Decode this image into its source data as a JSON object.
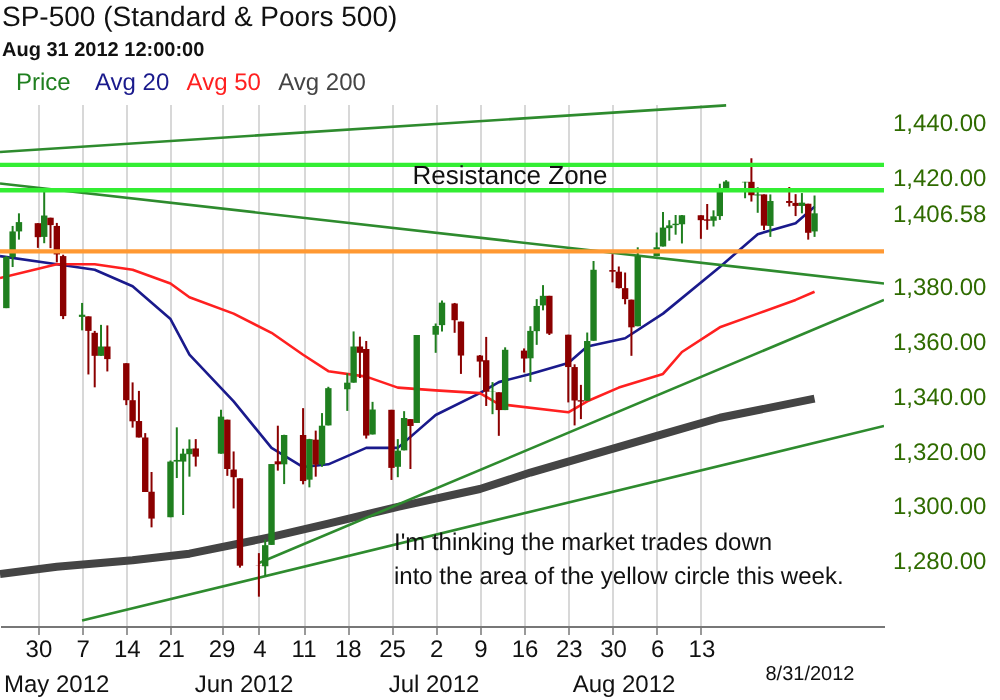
{
  "chart_data": {
    "type": "candlestick",
    "title": "SP-500 (Standard & Poors 500)",
    "subtitle": "Aug 31 2012 12:00:00",
    "xlim": [
      "2012-04-24",
      "2012-09-11"
    ],
    "xticks": [
      {
        "value": "2012-04-30",
        "label": "30"
      },
      {
        "value": "2012-05-07",
        "label": "7"
      },
      {
        "value": "2012-05-14",
        "label": "14"
      },
      {
        "value": "2012-05-21",
        "label": "21"
      },
      {
        "value": "2012-05-29",
        "label": "29"
      },
      {
        "value": "2012-06-04",
        "label": "4"
      },
      {
        "value": "2012-06-11",
        "label": "11"
      },
      {
        "value": "2012-06-18",
        "label": "18"
      },
      {
        "value": "2012-06-25",
        "label": "25"
      },
      {
        "value": "2012-07-02",
        "label": "2"
      },
      {
        "value": "2012-07-09",
        "label": "9"
      },
      {
        "value": "2012-07-16",
        "label": "16"
      },
      {
        "value": "2012-07-23",
        "label": "23"
      },
      {
        "value": "2012-07-30",
        "label": "30"
      },
      {
        "value": "2012-08-06",
        "label": "6"
      },
      {
        "value": "2012-08-13",
        "label": "13"
      }
    ],
    "ylim": [
      1256,
      1446.5
    ],
    "yticks": [
      {
        "value": 1280,
        "label": "1,280.00"
      },
      {
        "value": 1300,
        "label": "1,300.00"
      },
      {
        "value": 1320,
        "label": "1,320.00"
      },
      {
        "value": 1340,
        "label": "1,340.00"
      },
      {
        "value": 1360,
        "label": "1,360.00"
      },
      {
        "value": 1380,
        "label": "1,380.00"
      },
      {
        "value": 1406.58,
        "label": "1,406.58"
      },
      {
        "value": 1420,
        "label": "1,420.00"
      },
      {
        "value": 1440,
        "label": "1,440.00"
      }
    ],
    "grid": "x",
    "legend": "top left",
    "series": [
      {
        "type": "line",
        "name": "Avg 20",
        "color": "#1a1a8c",
        "x": [
          "2012-04-24",
          "2012-05-03",
          "2012-05-09",
          "2012-05-15",
          "2012-05-21",
          "2012-05-24",
          "2012-05-31",
          "2012-06-06",
          "2012-06-11",
          "2012-06-15",
          "2012-06-21",
          "2012-06-26",
          "2012-07-02",
          "2012-07-09",
          "2012-07-12",
          "2012-07-17",
          "2012-07-23",
          "2012-07-26",
          "2012-08-01",
          "2012-08-07",
          "2012-08-16",
          "2012-08-22",
          "2012-08-28",
          "2012-08-31"
        ],
        "values": [
          1391,
          1388,
          1386,
          1380,
          1368,
          1355,
          1338,
          1321,
          1314,
          1315,
          1321,
          1321,
          1333,
          1341,
          1345,
          1348,
          1352,
          1358,
          1361,
          1370,
          1387,
          1399,
          1403,
          1409
        ]
      },
      {
        "type": "line",
        "name": "Avg 50",
        "color": "#ff2020",
        "x": [
          "2012-04-24",
          "2012-05-03",
          "2012-05-09",
          "2012-05-15",
          "2012-05-21",
          "2012-05-24",
          "2012-05-31",
          "2012-06-06",
          "2012-06-11",
          "2012-06-15",
          "2012-06-21",
          "2012-06-26",
          "2012-07-02",
          "2012-07-09",
          "2012-07-12",
          "2012-07-23",
          "2012-07-26",
          "2012-07-31",
          "2012-08-07",
          "2012-08-10",
          "2012-08-16",
          "2012-08-22",
          "2012-08-28",
          "2012-08-31"
        ],
        "values": [
          1383,
          1388,
          1388,
          1386,
          1381,
          1376,
          1370,
          1363,
          1355,
          1349,
          1347,
          1343,
          1342,
          1341,
          1337,
          1334,
          1338,
          1343,
          1348,
          1356,
          1365,
          1370,
          1375,
          1378
        ]
      },
      {
        "type": "line",
        "name": "Avg 200",
        "color": "#444444",
        "x": [
          "2012-04-24",
          "2012-05-03",
          "2012-05-15",
          "2012-05-24",
          "2012-06-06",
          "2012-06-15",
          "2012-06-26",
          "2012-07-09",
          "2012-07-17",
          "2012-07-26",
          "2012-08-07",
          "2012-08-16",
          "2012-08-31"
        ],
        "values": [
          1275,
          1277.6,
          1280,
          1282.4,
          1288.5,
          1293.4,
          1299.5,
          1306,
          1312,
          1318,
          1326,
          1332,
          1339
        ]
      },
      {
        "type": "line",
        "color": "#2e8b2e",
        "x": [
          "2012-04-24",
          "2012-08-17"
        ],
        "values": [
          1429,
          1446
        ]
      },
      {
        "type": "line",
        "color": "#2e8b2e",
        "x": [
          "2012-04-24",
          "2012-09-11"
        ],
        "values": [
          1417.5,
          1381
        ]
      },
      {
        "type": "line",
        "color": "#2e8b2e",
        "x": [
          "2012-06-04",
          "2012-09-11"
        ],
        "values": [
          1279,
          1375
        ]
      },
      {
        "type": "line",
        "color": "#2e8b2e",
        "x": [
          "2012-05-07",
          "2012-09-11"
        ],
        "values": [
          1258,
          1329
        ]
      },
      {
        "type": "candlestick",
        "name": "Price",
        "color": "#1f7f1f",
        "x": [
          "2012-04-25",
          "2012-04-26",
          "2012-04-27",
          "2012-04-30",
          "2012-05-01",
          "2012-05-02",
          "2012-05-03",
          "2012-05-04",
          "2012-05-07",
          "2012-05-08",
          "2012-05-09",
          "2012-05-10",
          "2012-05-11",
          "2012-05-14",
          "2012-05-15",
          "2012-05-16",
          "2012-05-17",
          "2012-05-18",
          "2012-05-21",
          "2012-05-22",
          "2012-05-23",
          "2012-05-24",
          "2012-05-25",
          "2012-05-29",
          "2012-05-30",
          "2012-05-31",
          "2012-06-01",
          "2012-06-04",
          "2012-06-05",
          "2012-06-06",
          "2012-06-07",
          "2012-06-08",
          "2012-06-11",
          "2012-06-12",
          "2012-06-13",
          "2012-06-14",
          "2012-06-15",
          "2012-06-18",
          "2012-06-19",
          "2012-06-20",
          "2012-06-21",
          "2012-06-22",
          "2012-06-25",
          "2012-06-26",
          "2012-06-27",
          "2012-06-28",
          "2012-06-29",
          "2012-07-02",
          "2012-07-03",
          "2012-07-05",
          "2012-07-06",
          "2012-07-09",
          "2012-07-10",
          "2012-07-11",
          "2012-07-12",
          "2012-07-13",
          "2012-07-16",
          "2012-07-17",
          "2012-07-18",
          "2012-07-19",
          "2012-07-20",
          "2012-07-23",
          "2012-07-24",
          "2012-07-25",
          "2012-07-26",
          "2012-07-27",
          "2012-07-30",
          "2012-07-31",
          "2012-08-01",
          "2012-08-02",
          "2012-08-03",
          "2012-08-06",
          "2012-08-07",
          "2012-08-08",
          "2012-08-09",
          "2012-08-10",
          "2012-08-13",
          "2012-08-14",
          "2012-08-15",
          "2012-08-16",
          "2012-08-17",
          "2012-08-20",
          "2012-08-21",
          "2012-08-22",
          "2012-08-23",
          "2012-08-24",
          "2012-08-27",
          "2012-08-28",
          "2012-08-29",
          "2012-08-30",
          "2012-08-31"
        ],
        "ohlc": [
          [
            1372,
            1391,
            1372,
            1390.7
          ],
          [
            1390.6,
            1402,
            1387,
            1400
          ],
          [
            1400,
            1406.6,
            1397,
            1403.4
          ],
          [
            1403,
            1403,
            1394,
            1397.9
          ],
          [
            1398,
            1415.3,
            1395.7,
            1405.8
          ],
          [
            1405,
            1405,
            1393.9,
            1402.3
          ],
          [
            1402,
            1403.1,
            1388.7,
            1391.6
          ],
          [
            1391,
            1391.5,
            1368,
            1369.1
          ],
          [
            1368.8,
            1373.9,
            1363.9,
            1369.6
          ],
          [
            1369,
            1369,
            1347.8,
            1363.7
          ],
          [
            1363,
            1363.7,
            1343.1,
            1354.6
          ],
          [
            1354.6,
            1365.9,
            1354.6,
            1358
          ],
          [
            1358,
            1365.7,
            1348.9,
            1353.4
          ],
          [
            1351.9,
            1351.9,
            1336.6,
            1338.4
          ],
          [
            1338.4,
            1344.9,
            1328.4,
            1330.7
          ],
          [
            1330.8,
            1341.8,
            1324.8,
            1324.8
          ],
          [
            1324.8,
            1326.4,
            1304.9,
            1304.9
          ],
          [
            1305,
            1312.2,
            1292,
            1295.2
          ],
          [
            1295.7,
            1316.4,
            1295.7,
            1316
          ],
          [
            1316,
            1328.5,
            1310,
            1316.6
          ],
          [
            1316,
            1320.7,
            1296.5,
            1318.9
          ],
          [
            1318.7,
            1324.1,
            1310.5,
            1320.7
          ],
          [
            1320.8,
            1324.2,
            1314.2,
            1317.8
          ],
          [
            1318.9,
            1334.9,
            1318.9,
            1332.4
          ],
          [
            1331.3,
            1331.3,
            1310.8,
            1313.3
          ],
          [
            1313.1,
            1319.7,
            1298.9,
            1310.3
          ],
          [
            1309.9,
            1309.9,
            1277.3,
            1278
          ],
          [
            1278.3,
            1282.6,
            1266.7,
            1278.2
          ],
          [
            1277.8,
            1287.6,
            1274.2,
            1285.5
          ],
          [
            1285.6,
            1315.1,
            1285.6,
            1315.1
          ],
          [
            1316.1,
            1329.1,
            1312.7,
            1315
          ],
          [
            1315,
            1325.8,
            1307.8,
            1325.7
          ],
          [
            1325.7,
            1335.5,
            1307.7,
            1308.9
          ],
          [
            1309.4,
            1324.3,
            1306.6,
            1324.2
          ],
          [
            1324,
            1327.3,
            1310.5,
            1314.9
          ],
          [
            1314.9,
            1333.7,
            1314.1,
            1329.1
          ],
          [
            1329.2,
            1343.3,
            1329.2,
            1342.8
          ],
          [
            1342.4,
            1348.2,
            1334.5,
            1344.8
          ],
          [
            1344.8,
            1363.5,
            1344.8,
            1358
          ],
          [
            1358,
            1361.6,
            1346.5,
            1355.7
          ],
          [
            1357.1,
            1360,
            1324.4,
            1325.5
          ],
          [
            1325.9,
            1337.8,
            1325.9,
            1335
          ],
          [
            1334.9,
            1334.9,
            1309.3,
            1313.7
          ],
          [
            1314.1,
            1324.2,
            1310.3,
            1320
          ],
          [
            1320.1,
            1334.4,
            1320.1,
            1331.9
          ],
          [
            1331.5,
            1331.5,
            1313.3,
            1329
          ],
          [
            1330.1,
            1362.2,
            1330.1,
            1362.2
          ],
          [
            1362.3,
            1366.4,
            1355.7,
            1365.5
          ],
          [
            1365.8,
            1374.8,
            1363.5,
            1374
          ],
          [
            1373.7,
            1373.9,
            1363,
            1367.6
          ],
          [
            1367.1,
            1367.1,
            1348,
            1354.7
          ],
          [
            1354.7,
            1354.9,
            1346.7,
            1352.5
          ],
          [
            1353,
            1361.5,
            1336.3,
            1341.5
          ],
          [
            1341.4,
            1345,
            1333.3,
            1341.5
          ],
          [
            1341.3,
            1341.3,
            1325.4,
            1334.8
          ],
          [
            1334.8,
            1357.7,
            1334.8,
            1356.8
          ],
          [
            1356.5,
            1357.3,
            1348.5,
            1353.6
          ],
          [
            1353.7,
            1365.4,
            1345.1,
            1363.7
          ],
          [
            1363.6,
            1375.3,
            1358.6,
            1372.8
          ],
          [
            1373,
            1380.4,
            1371.2,
            1376.5
          ],
          [
            1376.5,
            1376.5,
            1362.2,
            1362.7
          ],
          [
            1362.3,
            1362.3,
            1337.6,
            1350.5
          ],
          [
            1350.5,
            1351.5,
            1329.2,
            1338.3
          ],
          [
            1338.4,
            1344,
            1331.5,
            1337.9
          ],
          [
            1338.2,
            1363.1,
            1338.2,
            1360
          ],
          [
            1360.1,
            1389.2,
            1360.1,
            1386
          ],
          [
            1385.9,
            1391.7,
            1381.4,
            1385.3
          ],
          [
            1385.3,
            1387.2,
            1379.2,
            1379.3
          ],
          [
            1379.3,
            1385,
            1373.4,
            1375.3
          ],
          [
            1375.1,
            1375.1,
            1354.6,
            1365
          ],
          [
            1365.4,
            1394.2,
            1365.4,
            1391
          ],
          [
            1391,
            1399.6,
            1391,
            1394.2
          ],
          [
            1394.5,
            1407.1,
            1394.5,
            1401.4
          ],
          [
            1401.2,
            1404.1,
            1396.6,
            1402.2
          ],
          [
            1402.3,
            1406,
            1398.8,
            1402.8
          ],
          [
            1402.6,
            1406,
            1395.6,
            1405.9
          ],
          [
            1405.9,
            1405.9,
            1397.3,
            1404.1
          ],
          [
            1404.4,
            1410,
            1400.6,
            1403.9
          ],
          [
            1403.9,
            1407.7,
            1401.8,
            1405.5
          ],
          [
            1405.6,
            1417.4,
            1404.2,
            1415.5
          ],
          [
            1415.8,
            1418.7,
            1414.7,
            1418.2
          ],
          [
            1417.9,
            1418.1,
            1412.1,
            1418.1
          ],
          [
            1418.1,
            1426.7,
            1410.9,
            1413.2
          ],
          [
            1413.1,
            1416.1,
            1406.8,
            1413.5
          ],
          [
            1413.5,
            1413.5,
            1400.5,
            1402.1
          ],
          [
            1402,
            1413.5,
            1398,
            1411.1
          ],
          [
            1411.1,
            1416.2,
            1409.1,
            1410.4
          ],
          [
            1410.4,
            1413.6,
            1405.6,
            1409.3
          ],
          [
            1409.3,
            1414,
            1406.6,
            1410.5
          ],
          [
            1410.1,
            1410.1,
            1397,
            1399.5
          ],
          [
            1400,
            1413.1,
            1398,
            1406.6
          ]
        ],
        "colors": [
          "#1f7f1f",
          "#1f7f1f",
          "#1f7f1f",
          "#8b0000",
          "#1f7f1f",
          "#8b0000",
          "#8b0000",
          "#8b0000",
          "#1f7f1f",
          "#8b0000",
          "#8b0000",
          "#1f7f1f",
          "#8b0000",
          "#8b0000",
          "#8b0000",
          "#8b0000",
          "#8b0000",
          "#8b0000",
          "#1f7f1f",
          "#1f7f1f",
          "#1f7f1f",
          "#1f7f1f",
          "#8b0000",
          "#1f7f1f",
          "#8b0000",
          "#8b0000",
          "#8b0000",
          "#8b0000",
          "#1f7f1f",
          "#1f7f1f",
          "#8b0000",
          "#1f7f1f",
          "#8b0000",
          "#1f7f1f",
          "#8b0000",
          "#1f7f1f",
          "#1f7f1f",
          "#1f7f1f",
          "#1f7f1f",
          "#8b0000",
          "#8b0000",
          "#1f7f1f",
          "#8b0000",
          "#1f7f1f",
          "#1f7f1f",
          "#8b0000",
          "#1f7f1f",
          "#1f7f1f",
          "#1f7f1f",
          "#8b0000",
          "#8b0000",
          "#8b0000",
          "#8b0000",
          "#1f7f1f",
          "#8b0000",
          "#1f7f1f",
          "#8b0000",
          "#1f7f1f",
          "#1f7f1f",
          "#1f7f1f",
          "#8b0000",
          "#8b0000",
          "#8b0000",
          "#8b0000",
          "#1f7f1f",
          "#1f7f1f",
          "#8b0000",
          "#8b0000",
          "#8b0000",
          "#8b0000",
          "#1f7f1f",
          "#1f7f1f",
          "#1f7f1f",
          "#1f7f1f",
          "#1f7f1f",
          "#1f7f1f",
          "#8b0000",
          "#8b0000",
          "#1f7f1f",
          "#1f7f1f",
          "#1f7f1f",
          "#1f7f1f",
          "#8b0000",
          "#1f7f1f",
          "#8b0000",
          "#1f7f1f",
          "#8b0000",
          "#8b0000",
          "#1f7f1f",
          "#8b0000",
          "#1f7f1f"
        ]
      }
    ],
    "ref_lines": [
      {
        "axis": "y",
        "value": 1392.7,
        "color": "#ff9933"
      },
      {
        "axis": "y",
        "value": 1415,
        "color": "#33ee33"
      },
      {
        "axis": "y",
        "value": 1424.3,
        "color": "#33ee33"
      }
    ],
    "annotations": [
      "May 2012",
      "Jun 2012",
      "Jul 2012",
      "Aug 2012",
      "Resistance Zone",
      "I'm thinking the market trades down\ninto the area of the yellow circle this week.",
      "8/31/2012"
    ]
  }
}
